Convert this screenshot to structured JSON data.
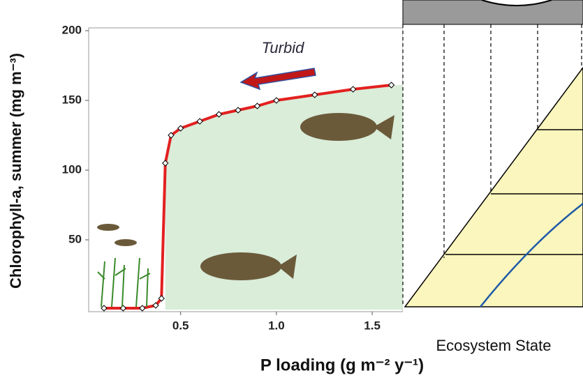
{
  "chart_data": {
    "type": "line",
    "y_label": "Chlorophyll-a, summer (mg m⁻³)",
    "x_label": "P loading (g m⁻² y⁻¹)",
    "annotation": "Turbid",
    "overlay_label": "Ecosystem State",
    "x": [
      0.1,
      0.2,
      0.3,
      0.37,
      0.4,
      0.42,
      0.45,
      0.5,
      0.6,
      0.7,
      0.8,
      0.9,
      1.0,
      1.2,
      1.4,
      1.6
    ],
    "values": [
      1,
      1,
      1,
      3,
      8,
      105,
      125,
      130,
      135,
      140,
      143,
      146,
      150,
      154,
      158,
      161
    ],
    "color": "#e32020",
    "xlim": [
      0.02,
      1.66
    ],
    "ylim": [
      0,
      200
    ],
    "xticks": [
      0.5,
      {
        "value": 1,
        "label": "1.0"
      },
      1.5
    ],
    "yticks": [
      50,
      100,
      150,
      200
    ]
  }
}
